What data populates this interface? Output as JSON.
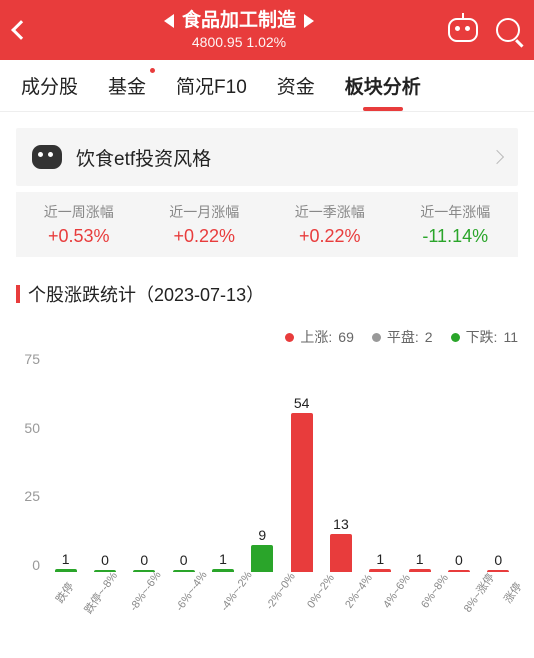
{
  "colors": {
    "up": "#e83c3c",
    "flat": "#999999",
    "down": "#2aa52a",
    "bg": "#f5f5f5"
  },
  "header": {
    "title": "食品加工制造",
    "price": "4800.95",
    "change": "1.02%"
  },
  "tabs": [
    {
      "label": "成分股",
      "active": false,
      "dot": false
    },
    {
      "label": "基金",
      "active": false,
      "dot": true
    },
    {
      "label": "简况F10",
      "active": false,
      "dot": false
    },
    {
      "label": "资金",
      "active": false,
      "dot": false
    },
    {
      "label": "板块分析",
      "active": true,
      "dot": false
    }
  ],
  "banner": {
    "text": "饮食etf投资风格"
  },
  "stats": [
    {
      "label": "近一周涨幅",
      "value": "+0.53%",
      "dir": "pos"
    },
    {
      "label": "近一月涨幅",
      "value": "+0.22%",
      "dir": "pos"
    },
    {
      "label": "近一季涨幅",
      "value": "+0.22%",
      "dir": "pos"
    },
    {
      "label": "近一年涨幅",
      "value": "-11.14%",
      "dir": "neg"
    }
  ],
  "section": {
    "title": "个股涨跌统计（2023-07-13）"
  },
  "legend": {
    "up_label": "上涨:",
    "up_count": 69,
    "flat_label": "平盘:",
    "flat_count": 2,
    "down_label": "下跌:",
    "down_count": 11
  },
  "chart": {
    "type": "bar",
    "ymax": 75,
    "yticks": [
      75,
      50,
      25,
      0
    ],
    "categories": [
      "跌停",
      "跌停~-8%",
      "-8%~-6%",
      "-6%~-4%",
      "-4%~-2%",
      "-2%~0%",
      "0%~2%",
      "2%~4%",
      "4%~6%",
      "6%~8%",
      "8%~涨停",
      "涨停"
    ],
    "values": [
      1,
      0,
      0,
      0,
      1,
      9,
      54,
      13,
      1,
      1,
      0,
      0
    ],
    "bar_colors": [
      "#2aa52a",
      "#2aa52a",
      "#2aa52a",
      "#2aa52a",
      "#2aa52a",
      "#2aa52a",
      "#e83c3c",
      "#e83c3c",
      "#e83c3c",
      "#e83c3c",
      "#e83c3c",
      "#e83c3c"
    ],
    "label_fontsize": 11
  }
}
